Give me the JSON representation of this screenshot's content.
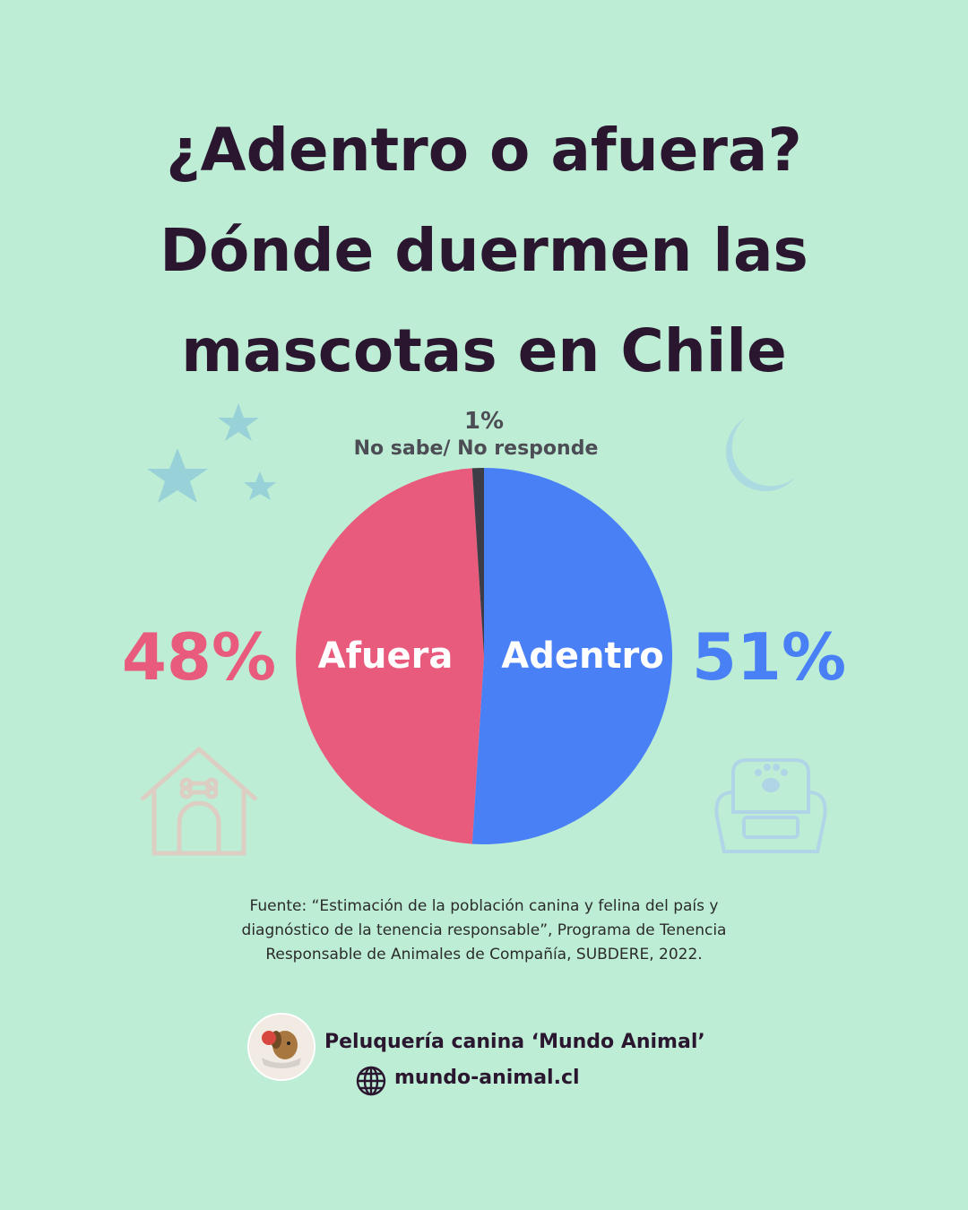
{
  "title": {
    "line1": "¿Adentro o afuera?",
    "line2": "Dónde duermen las",
    "line3": "mascotas en Chile"
  },
  "chart_data": {
    "type": "pie",
    "slices": [
      {
        "label": "Adentro",
        "value": 51,
        "value_label": "51%",
        "color": "#4a80f5"
      },
      {
        "label": "Afuera",
        "value": 48,
        "value_label": "48%",
        "color": "#e85b7d"
      },
      {
        "label": "No sabe/ No responde",
        "value": 1,
        "value_label": "1%",
        "color": "#3d3d48"
      }
    ],
    "legend": "none"
  },
  "source": {
    "line1": "Fuente: “Estimación de la población canina y felina del país y",
    "line2": "diagnóstico de la tenencia responsable”, Programa de Tenencia",
    "line3": "Responsable de Animales de Compañía, SUBDERE, 2022."
  },
  "brand": {
    "name": "Peluquería canina ‘Mundo Animal’",
    "website": "mundo-animal.cl"
  },
  "icons": [
    "star-icon",
    "moon-icon",
    "doghouse-icon",
    "pet-bed-icon",
    "globe-icon",
    "logo-icon"
  ]
}
